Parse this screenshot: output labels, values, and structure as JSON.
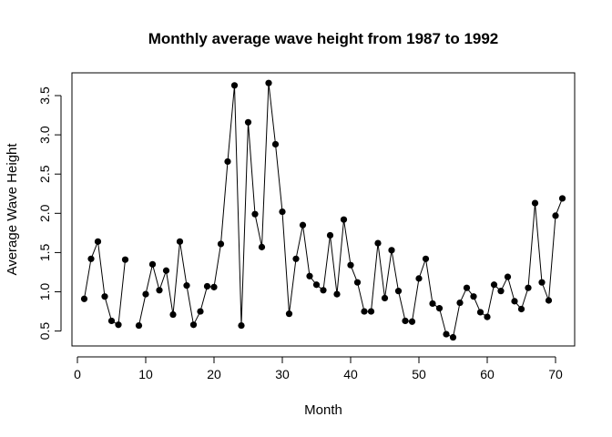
{
  "chart_data": {
    "type": "line",
    "title": "Monthly average wave height from 1987 to 1992",
    "xlabel": "Month",
    "ylabel": "Average Wave Height",
    "xlim": [
      -0.8,
      72.8
    ],
    "ylim": [
      0.31,
      3.79
    ],
    "x_ticks": [
      "0",
      "10",
      "20",
      "30",
      "40",
      "50",
      "60",
      "70"
    ],
    "y_ticks": [
      "0.5",
      "1.0",
      "1.5",
      "2.0",
      "2.5",
      "3.0",
      "3.5"
    ],
    "grid": false,
    "legend": "none",
    "series": [
      {
        "color": "#000000",
        "marker": "filled-circle",
        "x": [
          1,
          2,
          3,
          4,
          5,
          6,
          7,
          8,
          9,
          10,
          11,
          12,
          13,
          14,
          15,
          16,
          17,
          18,
          19,
          20,
          21,
          22,
          23,
          24,
          25,
          26,
          27,
          28,
          29,
          30,
          31,
          32,
          33,
          34,
          35,
          36,
          37,
          38,
          39,
          40,
          41,
          42,
          43,
          44,
          45,
          46,
          47,
          48,
          49,
          50,
          51,
          52,
          53,
          54,
          55,
          56,
          57,
          58,
          59,
          60,
          61,
          62,
          63,
          64,
          65,
          66,
          67,
          68,
          69,
          70,
          71
        ],
        "values": [
          0.91,
          1.42,
          1.64,
          0.94,
          0.63,
          0.58,
          1.41,
          null,
          0.57,
          0.97,
          1.35,
          1.02,
          1.27,
          0.71,
          1.64,
          1.08,
          0.58,
          0.75,
          1.07,
          1.06,
          1.61,
          2.66,
          3.63,
          0.57,
          3.16,
          1.99,
          1.57,
          3.66,
          2.88,
          2.02,
          0.72,
          1.42,
          1.85,
          1.2,
          1.09,
          1.02,
          1.72,
          0.97,
          1.92,
          1.34,
          1.12,
          0.75,
          0.75,
          1.62,
          0.92,
          1.53,
          1.01,
          0.63,
          0.62,
          1.17,
          1.42,
          0.85,
          0.79,
          0.46,
          0.42,
          0.86,
          1.05,
          0.94,
          0.74,
          0.68,
          1.09,
          1.01,
          1.19,
          0.88,
          0.78,
          1.05,
          2.13,
          1.12,
          0.89,
          1.97,
          2.19
        ]
      }
    ]
  }
}
